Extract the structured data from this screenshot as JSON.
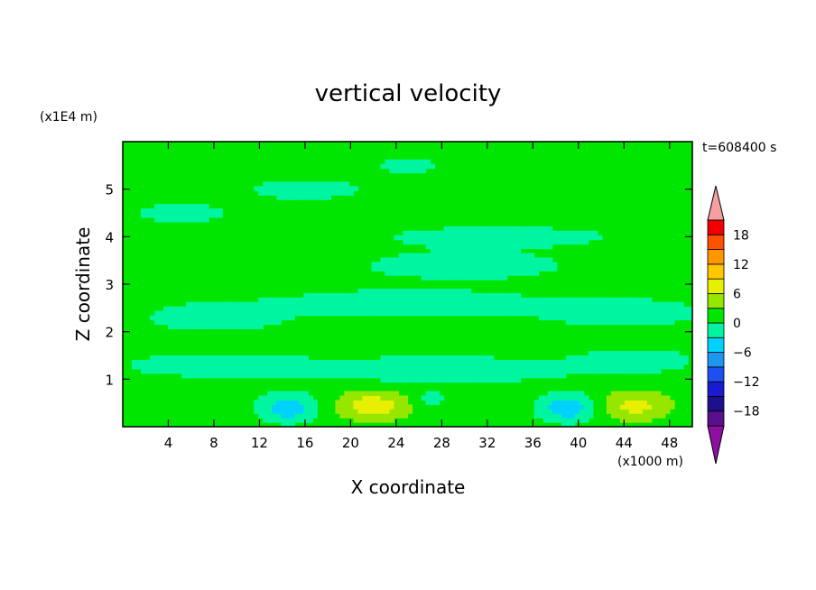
{
  "chart_data": {
    "type": "heatmap",
    "title": "vertical velocity",
    "xlabel": "X coordinate",
    "ylabel": "Z coordinate",
    "x_unit": "(x1000 m)",
    "y_unit": "(x1E4 m)",
    "time_label": "t=608400 s",
    "xlim": [
      0,
      50
    ],
    "ylim": [
      0,
      6
    ],
    "x_ticks": [
      4,
      8,
      12,
      16,
      20,
      24,
      28,
      32,
      36,
      40,
      44,
      48
    ],
    "y_ticks": [
      1,
      2,
      3,
      4,
      5
    ],
    "colorbar": {
      "levels": [
        -21,
        -18,
        -15,
        -12,
        -9,
        -6,
        -3,
        0,
        3,
        6,
        9,
        12,
        15,
        18,
        21
      ],
      "tick_values": [
        -18,
        -12,
        -6,
        0,
        6,
        12,
        18
      ],
      "tick_labels": [
        "−18",
        "−12",
        "−6",
        "0",
        "6",
        "12",
        "18"
      ],
      "colors": [
        "#5a0f8c",
        "#1e0f8c",
        "#1a1ad0",
        "#1e50f0",
        "#1e96f0",
        "#00d2ff",
        "#00f5a0",
        "#00e600",
        "#96e600",
        "#e6f000",
        "#ffc800",
        "#ff9600",
        "#ff5000",
        "#f00000"
      ],
      "under_color": "#8c0fa0",
      "over_color": "#f5a0a0"
    },
    "background_value": 1.5,
    "features": [
      {
        "x": 22,
        "z": 0.45,
        "value": 8,
        "sx": 3.0,
        "sz": 0.3
      },
      {
        "x": 45,
        "z": 0.45,
        "value": 7,
        "sx": 3.0,
        "sz": 0.3
      },
      {
        "x": 14.5,
        "z": 0.4,
        "value": -5,
        "sx": 2.5,
        "sz": 0.3
      },
      {
        "x": 39,
        "z": 0.4,
        "value": -5,
        "sx": 2.5,
        "sz": 0.3
      },
      {
        "x": 27,
        "z": 0.6,
        "value": -1,
        "sx": 1.5,
        "sz": 0.2
      },
      {
        "x": 16,
        "z": 5.0,
        "value": -2,
        "sx": 5.0,
        "sz": 0.22
      },
      {
        "x": 25,
        "z": 5.5,
        "value": -2,
        "sx": 2.5,
        "sz": 0.15
      },
      {
        "x": 33,
        "z": 4.0,
        "value": -2,
        "sx": 10.0,
        "sz": 0.22
      },
      {
        "x": 30,
        "z": 3.4,
        "value": -2,
        "sx": 9.0,
        "sz": 0.3
      },
      {
        "x": 5,
        "z": 4.5,
        "value": -2,
        "sx": 4.0,
        "sz": 0.2
      },
      {
        "x": 8,
        "z": 2.3,
        "value": -2,
        "sx": 6.0,
        "sz": 0.3
      },
      {
        "x": 25,
        "z": 2.6,
        "value": -2,
        "sx": 12.0,
        "sz": 0.3
      },
      {
        "x": 44,
        "z": 2.4,
        "value": -2,
        "sx": 7.0,
        "sz": 0.3
      },
      {
        "x": 8,
        "z": 1.3,
        "value": -2,
        "sx": 8.0,
        "sz": 0.25
      },
      {
        "x": 28,
        "z": 1.2,
        "value": -2,
        "sx": 12.0,
        "sz": 0.3
      },
      {
        "x": 45,
        "z": 1.4,
        "value": -2,
        "sx": 5.0,
        "sz": 0.25
      }
    ]
  }
}
